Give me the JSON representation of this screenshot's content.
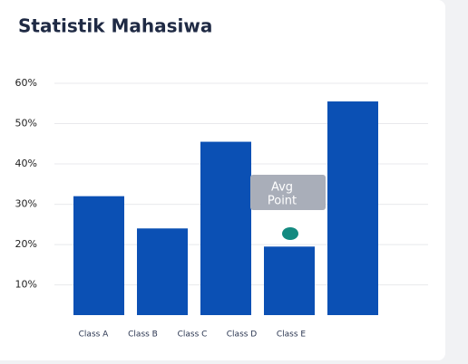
{
  "chart_data": {
    "type": "bar",
    "title": "Statistik Mahasiwa",
    "categories": [
      "Class A",
      "Class B",
      "Class C",
      "Class D",
      "Class E"
    ],
    "values": [
      32,
      24,
      45.5,
      19.5,
      55.5
    ],
    "color": "#0b50b4",
    "ylim": [
      2.5,
      60
    ],
    "yticks": [
      {
        "value": 10,
        "label": "10%"
      },
      {
        "value": 20,
        "label": "20%"
      },
      {
        "value": 30,
        "label": "30%"
      },
      {
        "value": 40,
        "label": "40%"
      },
      {
        "value": 50,
        "label": "50%"
      },
      {
        "value": 60,
        "label": "60%"
      }
    ],
    "grid": true,
    "annotation": [
      "Avg",
      "Point"
    ]
  }
}
